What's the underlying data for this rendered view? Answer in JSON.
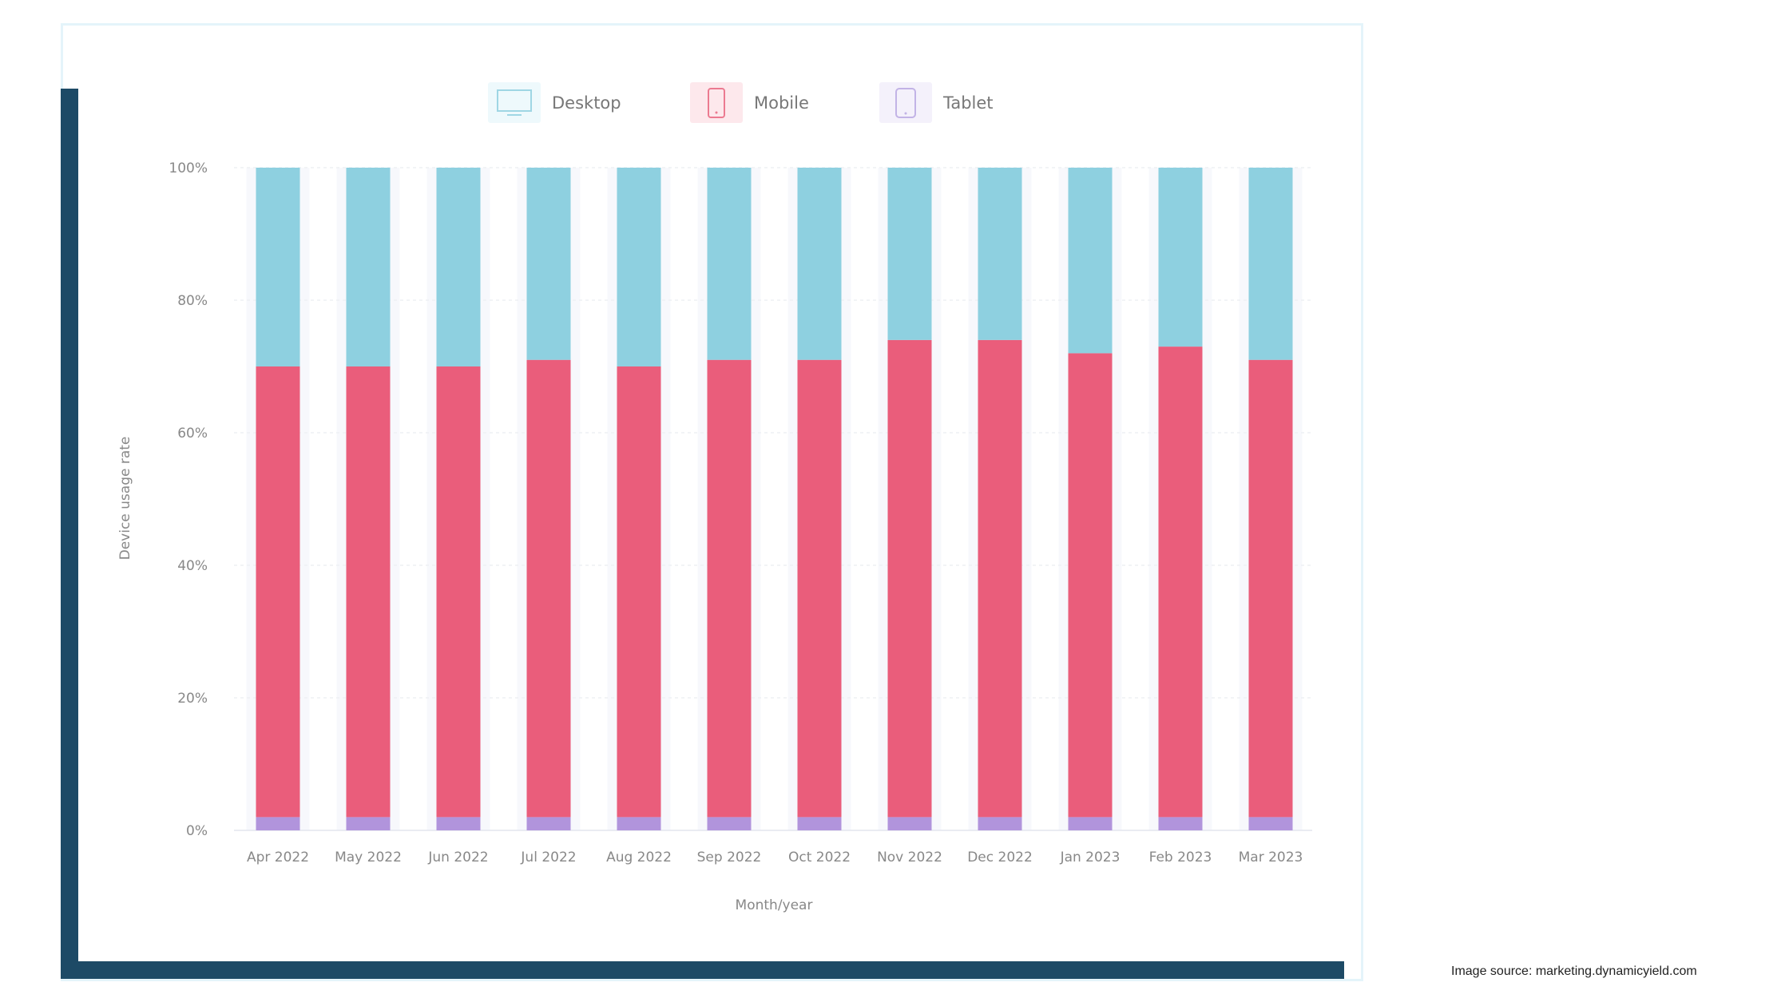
{
  "chart_data": {
    "type": "bar",
    "stacked": true,
    "title": "",
    "xlabel": "Month/year",
    "ylabel": "Device usage rate",
    "ylim": [
      0,
      100
    ],
    "yticks": [
      "0%",
      "20%",
      "40%",
      "60%",
      "80%",
      "100%"
    ],
    "grid": true,
    "legend_position": "top",
    "categories": [
      "Apr 2022",
      "May 2022",
      "Jun 2022",
      "Jul 2022",
      "Aug 2022",
      "Sep 2022",
      "Oct 2022",
      "Nov 2022",
      "Dec 2022",
      "Jan 2023",
      "Feb 2023",
      "Mar 2023"
    ],
    "series": [
      {
        "name": "Tablet",
        "color": "#b194dc",
        "icon": "tablet-icon",
        "values": [
          2,
          2,
          2,
          2,
          2,
          2,
          2,
          2,
          2,
          2,
          2,
          2
        ]
      },
      {
        "name": "Mobile",
        "color": "#ea5d7b",
        "icon": "mobile-icon",
        "values": [
          68,
          68,
          68,
          69,
          68,
          69,
          69,
          72,
          72,
          70,
          71,
          69
        ]
      },
      {
        "name": "Desktop",
        "color": "#8ed0e0",
        "icon": "desktop-icon",
        "values": [
          30,
          30,
          30,
          29,
          30,
          29,
          29,
          26,
          26,
          28,
          27,
          29
        ]
      }
    ]
  },
  "legend": [
    {
      "label": "Desktop"
    },
    {
      "label": "Mobile"
    },
    {
      "label": "Tablet"
    }
  ],
  "caption": "Image source: marketing.dynamicyield.com"
}
